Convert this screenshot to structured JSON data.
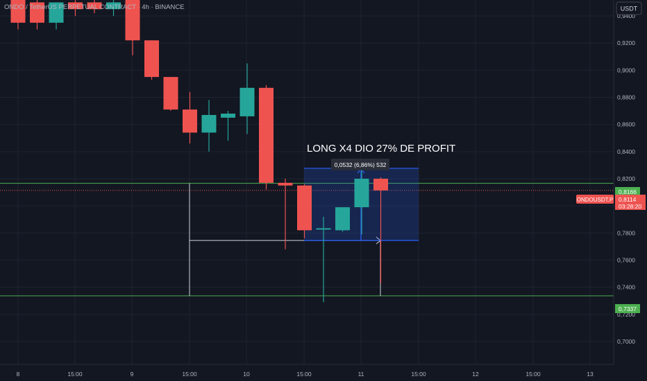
{
  "header": {
    "symbol_title": "ONDO / TetherUS PERPETUAL CONTRACT · 4h · BINANCE",
    "currency": "USDT"
  },
  "colors": {
    "background": "#131722",
    "grid": "#1f2330",
    "up": "#26a69a",
    "down": "#ef5350",
    "level_line": "#4caf50",
    "measure_box": "#2962ff",
    "axis_text": "#b2b5be",
    "wick_guides": "#d1d4dc"
  },
  "annotation": {
    "text": "LONG X4 DIO 27% DE PROFIT",
    "measure_label": "0,0532 (6,86%) 532"
  },
  "price_labels": {
    "level_top": "0,8166",
    "last_symbol": "ONDOUSDT.P",
    "last_price": "0,8114",
    "countdown": "03:28:20",
    "level_bottom": "0,7337"
  },
  "chart_data": {
    "type": "candlestick",
    "title": "ONDO / TetherUS PERPETUAL CONTRACT · 4h · BINANCE",
    "xlabel": "",
    "ylabel": "",
    "ylim": [
      0.69,
      0.95
    ],
    "y_ticks": [
      "0,9400",
      "0,9200",
      "0,9000",
      "0,8800",
      "0,8600",
      "0,8400",
      "0,8200",
      "0,8000",
      "0,7800",
      "0,7600",
      "0,7400",
      "0,7200",
      "0,7000"
    ],
    "y_tick_values": [
      0.94,
      0.92,
      0.9,
      0.88,
      0.86,
      0.84,
      0.82,
      0.8,
      0.78,
      0.76,
      0.74,
      0.72,
      0.7
    ],
    "x_ticks": [
      "8",
      "15:00",
      "9",
      "15:00",
      "10",
      "15:00",
      "11",
      "15:00",
      "12",
      "15:00",
      "13"
    ],
    "grid": true,
    "candles": [
      {
        "o": 0.952,
        "h": 0.953,
        "l": 0.93,
        "c": 0.935
      },
      {
        "o": 0.95,
        "h": 0.953,
        "l": 0.93,
        "c": 0.935
      },
      {
        "o": 0.935,
        "h": 0.95,
        "l": 0.93,
        "c": 0.95
      },
      {
        "o": 0.95,
        "h": 0.953,
        "l": 0.94,
        "c": 0.945
      },
      {
        "o": 0.95,
        "h": 0.953,
        "l": 0.942,
        "c": 0.945
      },
      {
        "o": 0.945,
        "h": 0.953,
        "l": 0.94,
        "c": 0.95
      },
      {
        "o": 0.953,
        "h": 0.953,
        "l": 0.911,
        "c": 0.922
      },
      {
        "o": 0.922,
        "h": 0.922,
        "l": 0.893,
        "c": 0.895
      },
      {
        "o": 0.895,
        "h": 0.895,
        "l": 0.87,
        "c": 0.871
      },
      {
        "o": 0.871,
        "h": 0.884,
        "l": 0.846,
        "c": 0.854
      },
      {
        "o": 0.854,
        "h": 0.878,
        "l": 0.84,
        "c": 0.867
      },
      {
        "o": 0.865,
        "h": 0.87,
        "l": 0.848,
        "c": 0.868
      },
      {
        "o": 0.866,
        "h": 0.905,
        "l": 0.853,
        "c": 0.887
      },
      {
        "o": 0.887,
        "h": 0.889,
        "l": 0.812,
        "c": 0.817
      },
      {
        "o": 0.817,
        "h": 0.82,
        "l": 0.768,
        "c": 0.815
      },
      {
        "o": 0.815,
        "h": 0.816,
        "l": 0.776,
        "c": 0.782
      },
      {
        "o": 0.7825,
        "h": 0.792,
        "l": 0.729,
        "c": 0.7835
      },
      {
        "o": 0.782,
        "h": 0.799,
        "l": 0.781,
        "c": 0.799
      },
      {
        "o": 0.799,
        "h": 0.828,
        "l": 0.779,
        "c": 0.82
      },
      {
        "o": 0.82,
        "h": 0.821,
        "l": 0.743,
        "c": 0.8114
      }
    ],
    "levels": [
      0.8166,
      0.7337
    ],
    "last_price": 0.8114,
    "measure": {
      "from": 0.7745,
      "to": 0.8277,
      "change": "0,0532",
      "percent": "6,86%",
      "bars": "532"
    },
    "annotation": "LONG X4 DIO 27% DE PROFIT"
  }
}
